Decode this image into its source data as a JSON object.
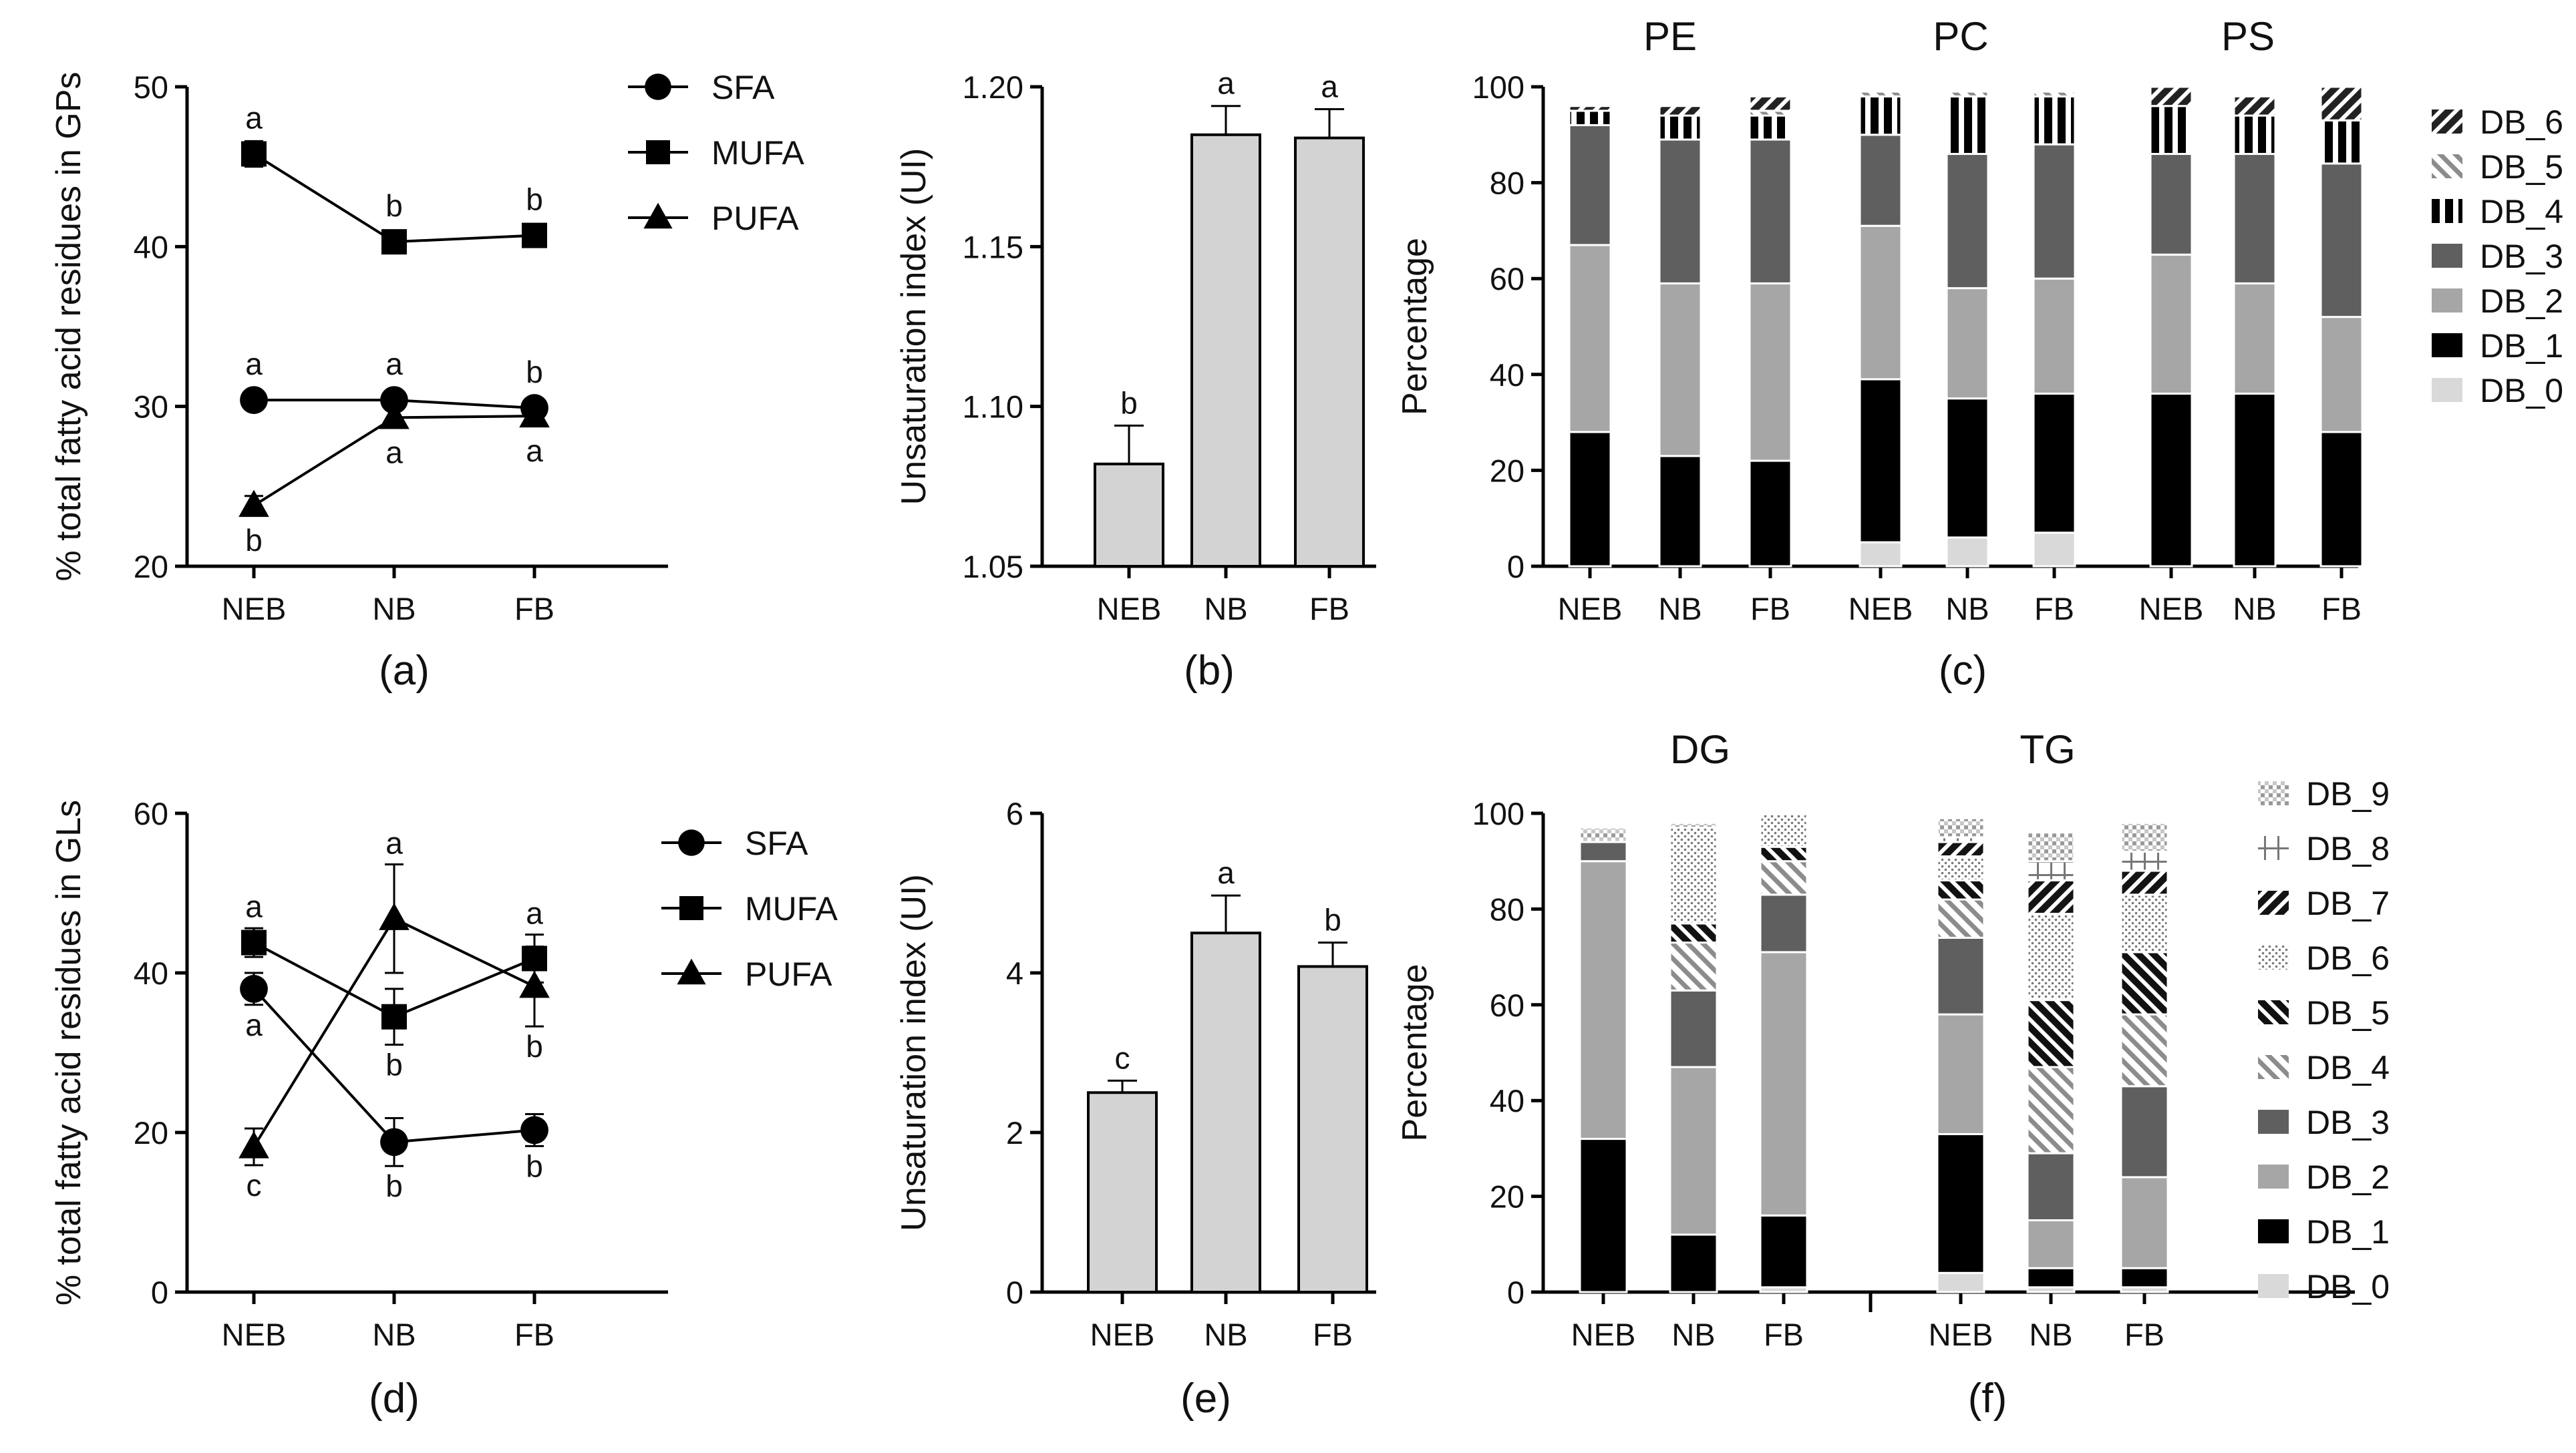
{
  "colors": {
    "DB_0": "#d9d9d9",
    "DB_1": "#000000",
    "DB_2": "#a6a6a6",
    "DB_3": "#5f5f5f",
    "DB_4": "#000000",
    "DB_5": "#8c8c8c",
    "DB_6": "#262626",
    "DB_7": "#141414",
    "DB_8": "#8a8a8a",
    "DB_9": "#9a9a9a",
    "bar_fill": "#d3d3d3",
    "axis": "#000000"
  },
  "chart_data": [
    {
      "id": "a",
      "panel_label": "(a)",
      "type": "line",
      "ylabel": "% total fatty acid residues in GPs",
      "categories": [
        "NEB",
        "NB",
        "FB"
      ],
      "ylim": [
        20,
        50
      ],
      "yticks": [
        "20",
        "30",
        "40",
        "50"
      ],
      "series": [
        {
          "name": "SFA",
          "marker": "circle",
          "values": [
            30.4,
            30.4,
            29.9
          ],
          "errors": [
            0.4,
            0.5,
            0.5
          ],
          "letters": [
            "a",
            "a",
            "b"
          ],
          "letter_pos": [
            "above",
            "above",
            "above"
          ]
        },
        {
          "name": "MUFA",
          "marker": "square",
          "values": [
            45.8,
            40.3,
            40.7
          ],
          "errors": [
            0.8,
            0.3,
            0.4
          ],
          "letters": [
            "a",
            "b",
            "b"
          ],
          "letter_pos": [
            "above",
            "above",
            "above"
          ]
        },
        {
          "name": "PUFA",
          "marker": "triangle",
          "values": [
            23.8,
            29.3,
            29.4
          ],
          "errors": [
            0.6,
            0.5,
            0.5
          ],
          "letters": [
            "b",
            "a",
            "a"
          ],
          "letter_pos": [
            "below",
            "below",
            "below"
          ]
        }
      ]
    },
    {
      "id": "b",
      "panel_label": "(b)",
      "type": "bar",
      "ylabel": "Unsaturation index (UI)",
      "categories": [
        "NEB",
        "NB",
        "FB"
      ],
      "ylim": [
        1.05,
        1.2
      ],
      "yticks": [
        "1.05",
        "1.10",
        "1.15",
        "1.20"
      ],
      "values": [
        1.082,
        1.185,
        1.184
      ],
      "errors": [
        0.012,
        0.009,
        0.009
      ],
      "letters": [
        "b",
        "a",
        "a"
      ]
    },
    {
      "id": "c",
      "panel_label": "(c)",
      "type": "bar",
      "stacked": true,
      "ylabel": "Percentage",
      "ylim": [
        0,
        100
      ],
      "yticks": [
        "0",
        "20",
        "40",
        "60",
        "80",
        "100"
      ],
      "groups": [
        {
          "title": "PE",
          "categories": [
            "NEB",
            "NB",
            "FB"
          ],
          "stacks": [
            {
              "DB_0": 0,
              "DB_1": 28,
              "DB_2": 39,
              "DB_3": 25,
              "DB_4": 3,
              "DB_5": 0,
              "DB_6": 1
            },
            {
              "DB_0": 0,
              "DB_1": 23,
              "DB_2": 36,
              "DB_3": 30,
              "DB_4": 5,
              "DB_5": 0,
              "DB_6": 2
            },
            {
              "DB_0": 0,
              "DB_1": 22,
              "DB_2": 37,
              "DB_3": 30,
              "DB_4": 5,
              "DB_5": 1,
              "DB_6": 3
            }
          ]
        },
        {
          "title": "PC",
          "categories": [
            "NEB",
            "NB",
            "FB"
          ],
          "stacks": [
            {
              "DB_0": 5,
              "DB_1": 34,
              "DB_2": 32,
              "DB_3": 19,
              "DB_4": 8,
              "DB_5": 1,
              "DB_6": 0
            },
            {
              "DB_0": 6,
              "DB_1": 29,
              "DB_2": 23,
              "DB_3": 28,
              "DB_4": 12,
              "DB_5": 1,
              "DB_6": 0
            },
            {
              "DB_0": 7,
              "DB_1": 29,
              "DB_2": 24,
              "DB_3": 28,
              "DB_4": 10,
              "DB_5": 1,
              "DB_6": 0
            }
          ]
        },
        {
          "title": "PS",
          "categories": [
            "NEB",
            "NB",
            "FB"
          ],
          "stacks": [
            {
              "DB_0": 0,
              "DB_1": 36,
              "DB_2": 29,
              "DB_3": 21,
              "DB_4": 10,
              "DB_5": 0,
              "DB_6": 4
            },
            {
              "DB_0": 0,
              "DB_1": 36,
              "DB_2": 23,
              "DB_3": 27,
              "DB_4": 8,
              "DB_5": 0,
              "DB_6": 4
            },
            {
              "DB_0": 0,
              "DB_1": 28,
              "DB_2": 24,
              "DB_3": 32,
              "DB_4": 9,
              "DB_5": 0,
              "DB_6": 7
            }
          ]
        }
      ],
      "legend": [
        "DB_6",
        "DB_5",
        "DB_4",
        "DB_3",
        "DB_2",
        "DB_1",
        "DB_0"
      ]
    },
    {
      "id": "d",
      "panel_label": "(d)",
      "type": "line",
      "ylabel": "% total fatty acid residues in GLs",
      "categories": [
        "NEB",
        "NB",
        "FB"
      ],
      "ylim": [
        0,
        60
      ],
      "yticks": [
        "0",
        "20",
        "40",
        "60"
      ],
      "series": [
        {
          "name": "SFA",
          "marker": "circle",
          "values": [
            38.0,
            18.8,
            20.3
          ],
          "errors": [
            2.0,
            3.0,
            2.0
          ],
          "letters": [
            "a",
            "b",
            "b"
          ],
          "letter_pos": [
            "below",
            "below",
            "below"
          ]
        },
        {
          "name": "MUFA",
          "marker": "square",
          "values": [
            43.8,
            34.5,
            41.8
          ],
          "errors": [
            1.8,
            3.5,
            3.0
          ],
          "letters": [
            "a",
            "b",
            "a"
          ],
          "letter_pos": [
            "above",
            "below",
            "above"
          ]
        },
        {
          "name": "PUFA",
          "marker": "triangle",
          "values": [
            18.2,
            46.8,
            38.3
          ],
          "errors": [
            2.3,
            6.8,
            5.0
          ],
          "letters": [
            "c",
            "a",
            "b"
          ],
          "letter_pos": [
            "below",
            "above",
            "below"
          ]
        }
      ]
    },
    {
      "id": "e",
      "panel_label": "(e)",
      "type": "bar",
      "ylabel": "Unsaturation index (UI)",
      "categories": [
        "NEB",
        "NB",
        "FB"
      ],
      "ylim": [
        0,
        6
      ],
      "yticks": [
        "0",
        "2",
        "4",
        "6"
      ],
      "values": [
        2.5,
        4.5,
        4.08
      ],
      "errors": [
        0.15,
        0.47,
        0.3
      ],
      "letters": [
        "c",
        "a",
        "b"
      ]
    },
    {
      "id": "f",
      "panel_label": "(f)",
      "type": "bar",
      "stacked": true,
      "ylabel": "Percentage",
      "ylim": [
        0,
        100
      ],
      "yticks": [
        "0",
        "20",
        "40",
        "60",
        "80",
        "100"
      ],
      "groups": [
        {
          "title": "DG",
          "categories": [
            "NEB",
            "NB",
            "FB"
          ],
          "stacks": [
            {
              "DB_0": 0,
              "DB_1": 32,
              "DB_2": 58,
              "DB_3": 4,
              "DB_4": 0,
              "DB_5": 0,
              "DB_6": 0,
              "DB_7": 0,
              "DB_8": 0,
              "DB_9": 3
            },
            {
              "DB_0": 0,
              "DB_1": 12,
              "DB_2": 35,
              "DB_3": 16,
              "DB_4": 10,
              "DB_5": 4,
              "DB_6": 20,
              "DB_7": 0,
              "DB_8": 0,
              "DB_9": 1
            },
            {
              "DB_0": 1,
              "DB_1": 15,
              "DB_2": 55,
              "DB_3": 12,
              "DB_4": 7,
              "DB_5": 3,
              "DB_6": 7,
              "DB_7": 0,
              "DB_8": 0,
              "DB_9": 0
            }
          ]
        },
        {
          "title": "TG",
          "categories": [
            "NEB",
            "NB",
            "FB"
          ],
          "stacks": [
            {
              "DB_0": 4,
              "DB_1": 29,
              "DB_2": 25,
              "DB_3": 16,
              "DB_4": 8,
              "DB_5": 4,
              "DB_6": 5,
              "DB_7": 3,
              "DB_8": 1,
              "DB_9": 4
            },
            {
              "DB_0": 1,
              "DB_1": 4,
              "DB_2": 10,
              "DB_3": 14,
              "DB_4": 18,
              "DB_5": 14,
              "DB_6": 18,
              "DB_7": 7,
              "DB_8": 4,
              "DB_9": 6
            },
            {
              "DB_0": 1,
              "DB_1": 4,
              "DB_2": 19,
              "DB_3": 19,
              "DB_4": 15,
              "DB_5": 13,
              "DB_6": 12,
              "DB_7": 5,
              "DB_8": 4,
              "DB_9": 6
            }
          ]
        }
      ],
      "legend": [
        "DB_9",
        "DB_8",
        "DB_7",
        "DB_6",
        "DB_5",
        "DB_4",
        "DB_3",
        "DB_2",
        "DB_1",
        "DB_0"
      ]
    }
  ]
}
